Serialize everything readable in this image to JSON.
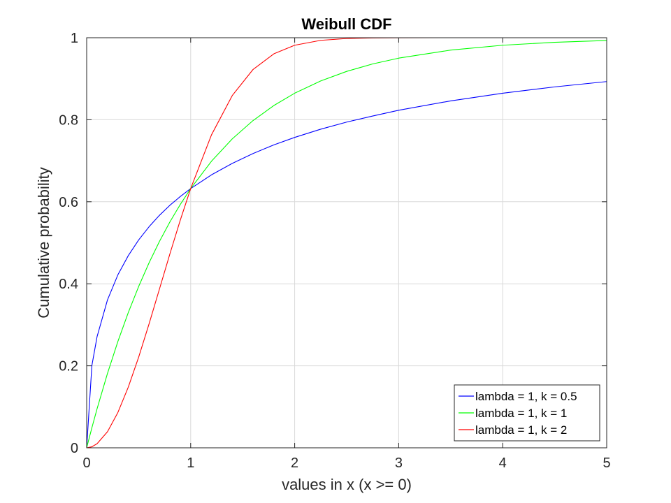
{
  "chart_data": {
    "type": "line",
    "title": "Weibull CDF",
    "xlabel": "values in x (x >= 0)",
    "ylabel": "Cumulative probability",
    "xlim": [
      0,
      5
    ],
    "ylim": [
      0,
      1
    ],
    "xticks": [
      0,
      1,
      2,
      3,
      4,
      5
    ],
    "xtick_labels": [
      "0",
      "1",
      "2",
      "3",
      "4",
      "5"
    ],
    "yticks": [
      0,
      0.2,
      0.4,
      0.6,
      0.8,
      1
    ],
    "ytick_labels": [
      "0",
      "0.2",
      "0.4",
      "0.6",
      "0.8",
      "1"
    ],
    "grid": true,
    "legend_position": "bottom-right",
    "x": [
      0,
      0.05,
      0.1,
      0.2,
      0.3,
      0.4,
      0.5,
      0.6,
      0.7,
      0.8,
      0.9,
      1.0,
      1.2,
      1.4,
      1.6,
      1.8,
      2.0,
      2.25,
      2.5,
      2.75,
      3.0,
      3.5,
      4.0,
      4.5,
      5.0
    ],
    "series": [
      {
        "name": "lambda = 1, k = 0.5",
        "color": "#0000ff",
        "values": [
          0,
          0.2004,
          0.2711,
          0.3606,
          0.4218,
          0.4686,
          0.5069,
          0.5391,
          0.567,
          0.5914,
          0.6127,
          0.6321,
          0.6656,
          0.6936,
          0.7177,
          0.7387,
          0.7569,
          0.7769,
          0.7943,
          0.8091,
          0.8231,
          0.846,
          0.8647,
          0.8801,
          0.8931
        ]
      },
      {
        "name": "lambda = 1, k = 1",
        "color": "#00ff00",
        "values": [
          0,
          0.0488,
          0.0952,
          0.1813,
          0.2592,
          0.3297,
          0.3935,
          0.4512,
          0.5034,
          0.5507,
          0.5934,
          0.6321,
          0.6988,
          0.7534,
          0.7981,
          0.8347,
          0.8647,
          0.8946,
          0.9179,
          0.9361,
          0.9502,
          0.9698,
          0.9817,
          0.9889,
          0.9933
        ]
      },
      {
        "name": "lambda = 1, k = 2",
        "color": "#ff0000",
        "values": [
          0,
          0.0025,
          0.01,
          0.0392,
          0.0861,
          0.1479,
          0.2212,
          0.3023,
          0.3874,
          0.4727,
          0.5551,
          0.6321,
          0.7631,
          0.8591,
          0.9227,
          0.9608,
          0.9817,
          0.9936,
          0.9981,
          0.9995,
          0.9999,
          1.0,
          1.0,
          1.0,
          1.0
        ]
      }
    ]
  }
}
